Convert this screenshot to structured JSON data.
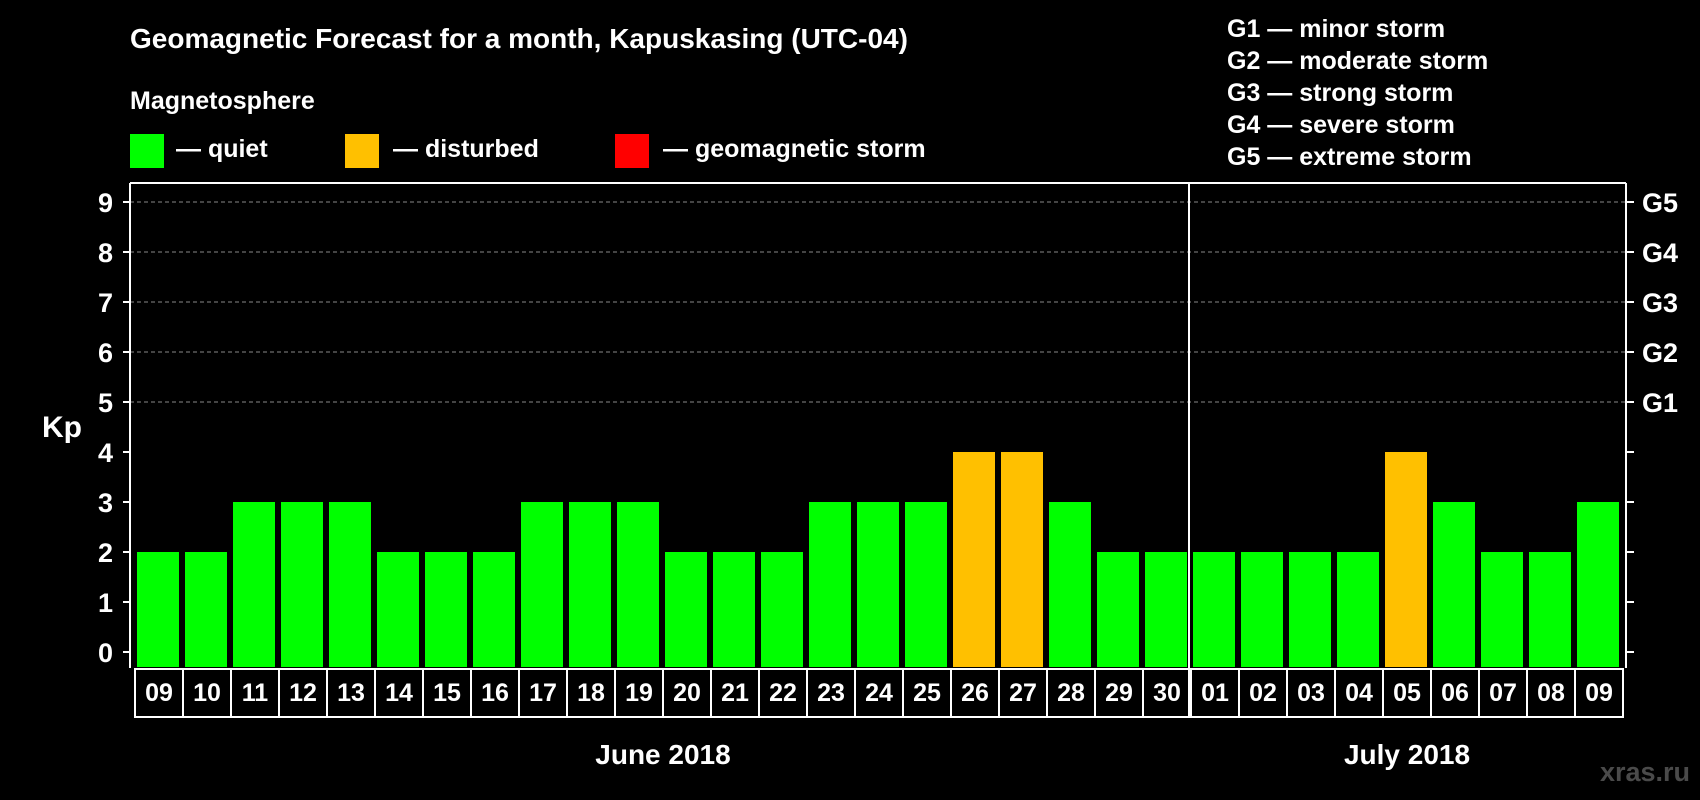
{
  "chart_data": {
    "type": "bar",
    "title": "Geomagnetic Forecast for a month, Kapuskasing (UTC-04)",
    "ylabel": "Kp",
    "ylim": [
      0,
      9
    ],
    "yticks": [
      "0",
      "1",
      "2",
      "3",
      "4",
      "5",
      "6",
      "7",
      "8",
      "9"
    ],
    "right_axis": [
      {
        "kp": 5,
        "label": "G1"
      },
      {
        "kp": 6,
        "label": "G2"
      },
      {
        "kp": 7,
        "label": "G3"
      },
      {
        "kp": 8,
        "label": "G4"
      },
      {
        "kp": 9,
        "label": "G5"
      }
    ],
    "legend": {
      "heading": "Magnetosphere",
      "items": [
        {
          "label": "— quiet",
          "color": "#00ff00"
        },
        {
          "label": "— disturbed",
          "color": "#ffc000"
        },
        {
          "label": "— geomagnetic storm",
          "color": "#ff0000"
        }
      ]
    },
    "storm_scale": [
      "G1 — minor storm",
      "G2 — moderate storm",
      "G3 — strong storm",
      "G4 — severe storm",
      "G5 — extreme storm"
    ],
    "categories": [
      "09",
      "10",
      "11",
      "12",
      "13",
      "14",
      "15",
      "16",
      "17",
      "18",
      "19",
      "20",
      "21",
      "22",
      "23",
      "24",
      "25",
      "26",
      "27",
      "28",
      "29",
      "30",
      "01",
      "02",
      "03",
      "04",
      "05",
      "06",
      "07",
      "08",
      "09"
    ],
    "values": [
      2,
      2,
      3,
      3,
      3,
      2,
      2,
      2,
      3,
      3,
      3,
      2,
      2,
      2,
      3,
      3,
      3,
      4,
      4,
      3,
      2,
      2,
      2,
      2,
      2,
      2,
      4,
      3,
      2,
      2,
      3
    ],
    "status": [
      "quiet",
      "quiet",
      "quiet",
      "quiet",
      "quiet",
      "quiet",
      "quiet",
      "quiet",
      "quiet",
      "quiet",
      "quiet",
      "quiet",
      "quiet",
      "quiet",
      "quiet",
      "quiet",
      "quiet",
      "disturbed",
      "disturbed",
      "quiet",
      "quiet",
      "quiet",
      "quiet",
      "quiet",
      "quiet",
      "quiet",
      "disturbed",
      "quiet",
      "quiet",
      "quiet",
      "quiet"
    ],
    "months": [
      {
        "label": "June 2018",
        "first_index": 0,
        "last_index": 21
      },
      {
        "label": "July 2018",
        "first_index": 22,
        "last_index": 30
      }
    ],
    "month_divider_after_index": 21
  },
  "watermark": "xras.ru",
  "colors": {
    "background": "#000000",
    "quiet": "#00ff00",
    "disturbed": "#ffc000",
    "storm": "#ff0000",
    "axis": "#ffffff",
    "grid": "#888888"
  }
}
